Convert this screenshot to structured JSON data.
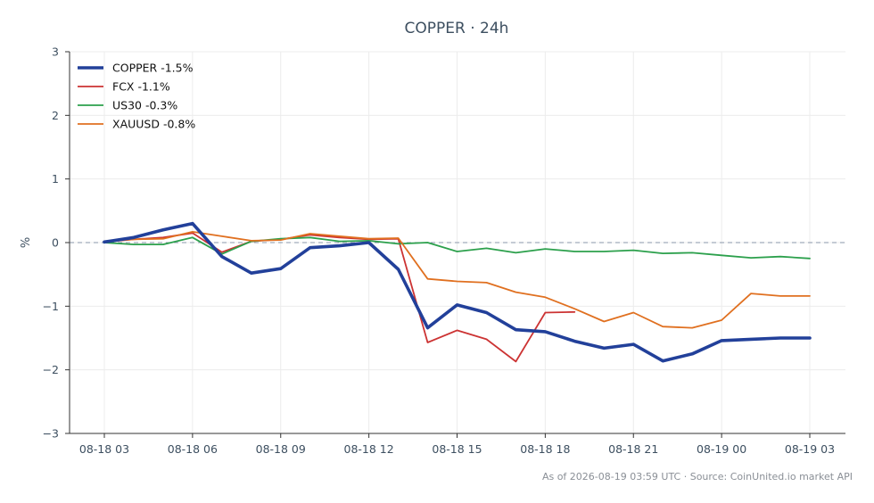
{
  "chart_data": {
    "type": "line",
    "title": "COPPER · 24h",
    "xlabel": "",
    "ylabel": "%",
    "x_ticks": [
      "08-18 03",
      "08-18 06",
      "08-18 09",
      "08-18 12",
      "08-18 15",
      "08-18 18",
      "08-18 21",
      "08-19 00",
      "08-19 03"
    ],
    "y_ticks": [
      3,
      2,
      1,
      0,
      -1,
      -2,
      -3
    ],
    "y_tick_labels": [
      "3",
      "2",
      "1",
      "0",
      "−1",
      "−2",
      "−3"
    ],
    "ylim": [
      -3,
      3
    ],
    "x_hours": [
      0,
      24
    ],
    "grid": true,
    "zero_line": true,
    "legend_position": "top-left",
    "series": [
      {
        "name": "COPPER -1.5%",
        "color": "#22409a",
        "emphasis": true,
        "x": [
          0,
          1,
          2,
          3,
          4,
          5,
          6,
          7,
          8,
          9,
          10,
          11,
          12,
          13,
          14,
          15,
          16,
          17,
          18,
          19,
          20,
          21,
          22,
          23,
          24
        ],
        "values": [
          0.01,
          0.08,
          0.2,
          0.3,
          -0.22,
          -0.48,
          -0.41,
          -0.08,
          -0.05,
          0.0,
          -0.42,
          -1.34,
          -0.98,
          -1.1,
          -1.37,
          -1.4,
          -1.55,
          -1.66,
          -1.6,
          -1.86,
          -1.75,
          -1.54,
          -1.52,
          -1.5,
          -1.5
        ]
      },
      {
        "name": "FCX -1.1%",
        "color": "#cc3333",
        "emphasis": false,
        "x": [
          0,
          1,
          2,
          3,
          4,
          5,
          6,
          7,
          8,
          9,
          10,
          11,
          12,
          13,
          14,
          15,
          16
        ],
        "values": [
          0.01,
          0.05,
          0.08,
          0.15,
          -0.15,
          0.02,
          0.05,
          0.12,
          0.08,
          0.05,
          0.06,
          -1.57,
          -1.38,
          -1.52,
          -1.87,
          -1.1,
          -1.09
        ]
      },
      {
        "name": "US30 -0.3%",
        "color": "#2ca04c",
        "emphasis": false,
        "x": [
          0,
          1,
          2,
          3,
          4,
          5,
          6,
          7,
          8,
          9,
          10,
          11,
          12,
          13,
          14,
          15,
          16,
          17,
          18,
          19,
          20,
          21,
          22,
          23,
          24
        ],
        "values": [
          0.0,
          -0.03,
          -0.03,
          0.08,
          -0.18,
          0.02,
          0.06,
          0.08,
          0.02,
          0.03,
          -0.02,
          0.0,
          -0.14,
          -0.09,
          -0.16,
          -0.1,
          -0.14,
          -0.14,
          -0.12,
          -0.17,
          -0.16,
          -0.2,
          -0.24,
          -0.22,
          -0.25
        ]
      },
      {
        "name": "XAUUSD -0.8%",
        "color": "#e07020",
        "emphasis": false,
        "x": [
          0,
          1,
          2,
          3,
          4,
          5,
          6,
          7,
          8,
          9,
          10,
          11,
          12,
          13,
          14,
          15,
          16,
          17,
          18,
          19,
          20,
          21,
          22,
          23,
          24
        ],
        "values": [
          0.02,
          0.05,
          0.06,
          0.17,
          0.1,
          0.03,
          0.04,
          0.14,
          0.1,
          0.06,
          0.07,
          -0.57,
          -0.61,
          -0.63,
          -0.78,
          -0.86,
          -1.04,
          -1.24,
          -1.1,
          -1.32,
          -1.34,
          -1.22,
          -0.8,
          -0.84,
          -0.84
        ]
      }
    ]
  },
  "footer": "As of 2026-08-19 03:59 UTC · Source: CoinUnited.io market API"
}
